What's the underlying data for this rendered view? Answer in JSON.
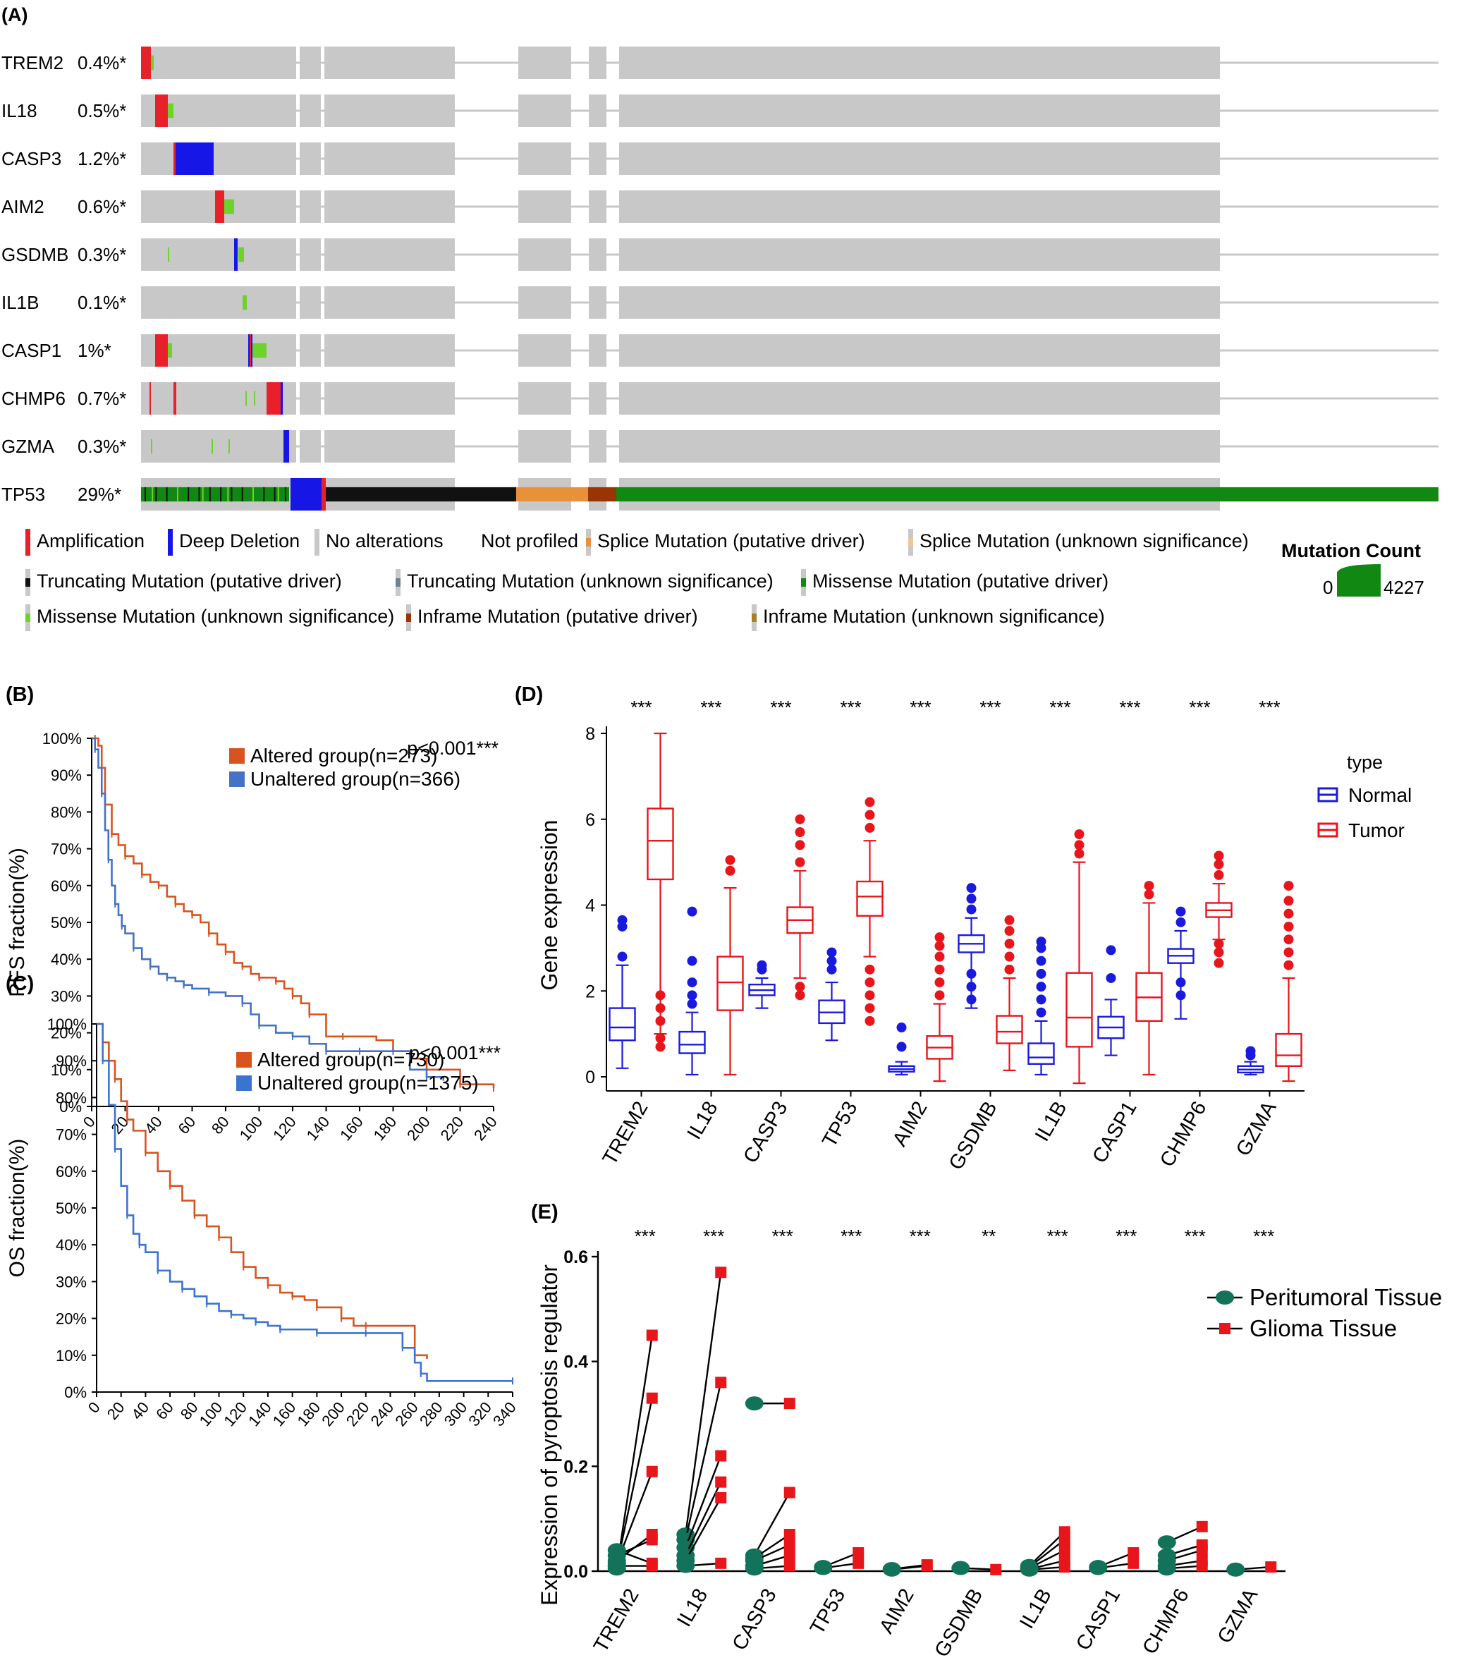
{
  "panels": {
    "A": "(A)",
    "B": "(B)",
    "C": "(C)",
    "D": "(D)",
    "E": "(E)"
  },
  "oncoprint": {
    "genes": [
      {
        "name": "TREM2",
        "pct": "0.4%*"
      },
      {
        "name": "IL18",
        "pct": "0.5%*"
      },
      {
        "name": "CASP3",
        "pct": "1.2%*"
      },
      {
        "name": "AIM2",
        "pct": "0.6%*"
      },
      {
        "name": "GSDMB",
        "pct": "0.3%*"
      },
      {
        "name": "IL1B",
        "pct": "0.1%*"
      },
      {
        "name": "CASP1",
        "pct": "1%*"
      },
      {
        "name": "CHMP6",
        "pct": "0.7%*"
      },
      {
        "name": "GZMA",
        "pct": "0.3%*"
      },
      {
        "name": "TP53",
        "pct": "29%*"
      }
    ],
    "legend": [
      {
        "label": "Amplification",
        "color": "#e8202a"
      },
      {
        "label": "Deep Deletion",
        "color": "#1616e6"
      },
      {
        "label": "No alterations",
        "color": "#c8c8c8"
      },
      {
        "label": "Not profiled",
        "color": "#ffffff"
      },
      {
        "label": "Splice Mutation (putative driver)",
        "color": "#e8913a"
      },
      {
        "label": "Splice Mutation (unknown significance)",
        "color": "#f0c49a"
      },
      {
        "label": "Truncating Mutation (putative driver)",
        "color": "#111111"
      },
      {
        "label": "Truncating Mutation (unknown significance)",
        "color": "#708090"
      },
      {
        "label": "Missense Mutation (putative driver)",
        "color": "#118811"
      },
      {
        "label": "Missense Mutation (unknown significance)",
        "color": "#6ed22c"
      },
      {
        "label": "Inframe Mutation (putative driver)",
        "color": "#993404"
      },
      {
        "label": "Inframe Mutation (unknown significance)",
        "color": "#a68028"
      }
    ],
    "mutation_count": {
      "title": "Mutation Count",
      "min": "0",
      "max": "4227"
    }
  },
  "chart_data": [
    {
      "type": "line",
      "panel": "B",
      "ylabel": "PFS fraction(%)",
      "pvalue": "p<0.001***",
      "xlim": [
        0,
        240
      ],
      "ylim": [
        0,
        100
      ],
      "xticks": [
        0,
        20,
        40,
        60,
        80,
        100,
        120,
        140,
        160,
        180,
        200,
        220,
        240
      ],
      "yticks": [
        "0%",
        "10%",
        "20%",
        "30%",
        "40%",
        "50%",
        "60%",
        "70%",
        "80%",
        "90%",
        "100%"
      ],
      "series": [
        {
          "name": "Altered group(n=273)",
          "color": "#d9531e",
          "x": [
            0,
            2,
            4,
            6,
            8,
            12,
            16,
            20,
            25,
            30,
            35,
            40,
            45,
            50,
            55,
            60,
            65,
            70,
            75,
            80,
            85,
            90,
            95,
            100,
            105,
            110,
            115,
            120,
            125,
            130,
            140,
            150,
            170,
            180,
            190,
            200,
            215,
            220,
            230,
            240
          ],
          "y": [
            100,
            100,
            98,
            92,
            82,
            74,
            71,
            68,
            66,
            63,
            61,
            60,
            57,
            55,
            53,
            52,
            50,
            47,
            44,
            42,
            39,
            38,
            36,
            35,
            35,
            34,
            32,
            30,
            28,
            25,
            19,
            19,
            18,
            15,
            13,
            10,
            10,
            6,
            6,
            5
          ]
        },
        {
          "name": "Unaltered group(n=366)",
          "color": "#4472c4",
          "x": [
            0,
            2,
            4,
            6,
            8,
            10,
            12,
            14,
            16,
            18,
            20,
            25,
            30,
            35,
            40,
            45,
            50,
            55,
            60,
            70,
            80,
            90,
            95,
            100,
            110,
            120,
            130,
            140,
            150,
            160,
            170,
            180,
            190,
            200,
            210
          ],
          "y": [
            100,
            97,
            92,
            85,
            75,
            67,
            60,
            55,
            52,
            49,
            47,
            43,
            40,
            38,
            36,
            35,
            34,
            33,
            32,
            31,
            30,
            28,
            25,
            22,
            20,
            19,
            17,
            15,
            15,
            15,
            15,
            15,
            10,
            8,
            7
          ]
        }
      ]
    },
    {
      "type": "line",
      "panel": "C",
      "ylabel": "OS fraction(%)",
      "pvalue": "p<0.001***",
      "xlim": [
        0,
        340
      ],
      "ylim": [
        0,
        100
      ],
      "xticks": [
        0,
        20,
        40,
        60,
        80,
        100,
        120,
        140,
        160,
        180,
        200,
        220,
        240,
        260,
        280,
        300,
        320,
        340
      ],
      "yticks": [
        "0%",
        "10%",
        "20%",
        "30%",
        "40%",
        "50%",
        "60%",
        "70%",
        "80%",
        "90%",
        "100%"
      ],
      "series": [
        {
          "name": "Altered group(n=730)",
          "color": "#d9531e",
          "x": [
            0,
            5,
            10,
            15,
            20,
            25,
            30,
            40,
            50,
            60,
            70,
            80,
            90,
            100,
            110,
            120,
            130,
            140,
            150,
            160,
            170,
            180,
            190,
            200,
            210,
            220,
            240,
            260,
            270
          ],
          "y": [
            100,
            95,
            90,
            85,
            79,
            74,
            71,
            65,
            60,
            56,
            52,
            48,
            45,
            42,
            38,
            34,
            31,
            29,
            27,
            26,
            25,
            23,
            23,
            20,
            18,
            18,
            18,
            10,
            9
          ]
        },
        {
          "name": "Unaltered group(n=1375)",
          "color": "#3b73d1",
          "x": [
            0,
            5,
            10,
            15,
            20,
            25,
            30,
            35,
            40,
            50,
            60,
            70,
            80,
            90,
            100,
            110,
            120,
            130,
            140,
            150,
            160,
            180,
            200,
            220,
            240,
            250,
            260,
            265,
            270,
            340
          ],
          "y": [
            100,
            90,
            78,
            66,
            56,
            48,
            43,
            40,
            38,
            33,
            30,
            28,
            26,
            24,
            22,
            21,
            20,
            19,
            18,
            17,
            17,
            16,
            16,
            16,
            16,
            12,
            8,
            5,
            3,
            3
          ]
        }
      ]
    },
    {
      "type": "box",
      "panel": "D",
      "ylabel": "Gene expression",
      "ylim": [
        0,
        8
      ],
      "yticks": [
        0,
        2,
        4,
        6,
        8
      ],
      "legend_title": "type",
      "categories": [
        "TREM2",
        "IL18",
        "CASP3",
        "TP53",
        "AIM2",
        "GSDMB",
        "IL1B",
        "CASP1",
        "CHMP6",
        "GZMA"
      ],
      "significance": [
        "***",
        "***",
        "***",
        "***",
        "***",
        "***",
        "***",
        "***",
        "***",
        "***"
      ],
      "series": [
        {
          "name": "Normal",
          "color": "#1a1adf",
          "boxes": [
            {
              "min": 0.2,
              "q1": 0.85,
              "median": 1.15,
              "q3": 1.6,
              "max": 2.6,
              "outliers": [
                2.8,
                3.5,
                3.65
              ]
            },
            {
              "min": 0.05,
              "q1": 0.55,
              "median": 0.75,
              "q3": 1.05,
              "max": 1.5,
              "outliers": [
                1.7,
                1.9,
                2.2,
                2.7,
                3.85
              ]
            },
            {
              "min": 1.6,
              "q1": 1.9,
              "median": 2.02,
              "q3": 2.15,
              "max": 2.3,
              "outliers": [
                2.5,
                2.6
              ]
            },
            {
              "min": 0.85,
              "q1": 1.25,
              "median": 1.5,
              "q3": 1.78,
              "max": 2.2,
              "outliers": [
                2.5,
                2.7,
                2.9
              ]
            },
            {
              "min": 0.05,
              "q1": 0.12,
              "median": 0.18,
              "q3": 0.25,
              "max": 0.35,
              "outliers": [
                0.7,
                1.15
              ]
            },
            {
              "min": 1.6,
              "q1": 2.9,
              "median": 3.1,
              "q3": 3.3,
              "max": 3.7,
              "outliers": [
                1.8,
                2.1,
                2.4,
                3.9,
                4.15,
                4.4
              ]
            },
            {
              "min": 0.05,
              "q1": 0.3,
              "median": 0.45,
              "q3": 0.78,
              "max": 1.3,
              "outliers": [
                1.5,
                1.8,
                2.1,
                2.4,
                2.7,
                3.0,
                3.15
              ]
            },
            {
              "min": 0.5,
              "q1": 0.9,
              "median": 1.15,
              "q3": 1.4,
              "max": 1.8,
              "outliers": [
                2.3,
                2.95
              ]
            },
            {
              "min": 1.35,
              "q1": 2.65,
              "median": 2.82,
              "q3": 2.98,
              "max": 3.4,
              "outliers": [
                1.9,
                2.2,
                3.6,
                3.85
              ]
            },
            {
              "min": 0.05,
              "q1": 0.1,
              "median": 0.17,
              "q3": 0.25,
              "max": 0.35,
              "outliers": [
                0.5,
                0.6
              ]
            }
          ]
        },
        {
          "name": "Tumor",
          "color": "#e8151b",
          "boxes": [
            {
              "min": 1.0,
              "q1": 4.6,
              "median": 5.5,
              "q3": 6.25,
              "max": 8.0,
              "outliers": [
                0.7,
                0.9,
                1.3,
                1.6,
                1.9
              ]
            },
            {
              "min": 0.05,
              "q1": 1.55,
              "median": 2.2,
              "q3": 2.8,
              "max": 4.4,
              "outliers": [
                4.8,
                5.05
              ]
            },
            {
              "min": 2.3,
              "q1": 3.35,
              "median": 3.65,
              "q3": 3.95,
              "max": 4.8,
              "outliers": [
                1.9,
                2.1,
                5.0,
                5.4,
                5.7,
                6.0
              ]
            },
            {
              "min": 2.8,
              "q1": 3.75,
              "median": 4.2,
              "q3": 4.55,
              "max": 5.5,
              "outliers": [
                1.3,
                1.6,
                1.9,
                2.2,
                2.5,
                5.8,
                6.1,
                6.4
              ]
            },
            {
              "min": -0.1,
              "q1": 0.42,
              "median": 0.68,
              "q3": 0.95,
              "max": 1.7,
              "outliers": [
                1.9,
                2.2,
                2.5,
                2.8,
                3.05,
                3.25
              ]
            },
            {
              "min": 0.15,
              "q1": 0.78,
              "median": 1.05,
              "q3": 1.42,
              "max": 2.3,
              "outliers": [
                2.5,
                2.8,
                3.1,
                3.4,
                3.65
              ]
            },
            {
              "min": -0.15,
              "q1": 0.7,
              "median": 1.38,
              "q3": 2.42,
              "max": 5.0,
              "outliers": [
                5.2,
                5.4,
                5.65
              ]
            },
            {
              "min": 0.05,
              "q1": 1.3,
              "median": 1.85,
              "q3": 2.42,
              "max": 4.05,
              "outliers": [
                4.25,
                4.45
              ]
            },
            {
              "min": 3.2,
              "q1": 3.72,
              "median": 3.88,
              "q3": 4.05,
              "max": 4.5,
              "outliers": [
                2.65,
                2.9,
                3.1,
                4.7,
                4.95,
                5.15
              ]
            },
            {
              "min": -0.1,
              "q1": 0.25,
              "median": 0.5,
              "q3": 1.0,
              "max": 2.3,
              "outliers": [
                2.6,
                2.9,
                3.2,
                3.5,
                3.8,
                4.1,
                4.45
              ]
            }
          ]
        }
      ]
    },
    {
      "type": "scatter",
      "panel": "E",
      "ylabel": "Expression of pyroptosis regulator",
      "ylim": [
        0,
        0.6
      ],
      "yticks": [
        "0.0",
        "0.2",
        "0.4",
        "0.6"
      ],
      "categories": [
        "TREM2",
        "IL18",
        "CASP3",
        "TP53",
        "AIM2",
        "GSDMB",
        "IL1B",
        "CASP1",
        "CHMP6",
        "GZMA"
      ],
      "significance": [
        "***",
        "***",
        "***",
        "***",
        "***",
        "**",
        "***",
        "***",
        "***",
        "***"
      ],
      "series": [
        {
          "name": "Peritumoral Tissue",
          "color": "#12735a",
          "marker": "circle"
        },
        {
          "name": "Glioma Tissue",
          "color": "#e8151b",
          "marker": "square"
        }
      ],
      "pairs": [
        [
          [
            0.005,
            0.45
          ],
          [
            0.01,
            0.33
          ],
          [
            0.015,
            0.19
          ],
          [
            0.02,
            0.07
          ],
          [
            0.03,
            0.06
          ],
          [
            0.04,
            0.015
          ],
          [
            0.01,
            0.01
          ]
        ],
        [
          [
            0.07,
            0.57
          ],
          [
            0.06,
            0.36
          ],
          [
            0.045,
            0.22
          ],
          [
            0.03,
            0.17
          ],
          [
            0.02,
            0.14
          ],
          [
            0.01,
            0.015
          ]
        ],
        [
          [
            0.32,
            0.32
          ],
          [
            0.03,
            0.15
          ],
          [
            0.025,
            0.07
          ],
          [
            0.02,
            0.05
          ],
          [
            0.01,
            0.03
          ],
          [
            0.005,
            0.01
          ]
        ],
        [
          [
            0.008,
            0.035
          ],
          [
            0.006,
            0.015
          ]
        ],
        [
          [
            0.004,
            0.012
          ],
          [
            0.003,
            0.01
          ]
        ],
        [
          [
            0.006,
            0.003
          ]
        ],
        [
          [
            0.01,
            0.075
          ],
          [
            0.008,
            0.06
          ],
          [
            0.006,
            0.04
          ],
          [
            0.004,
            0.02
          ],
          [
            0.003,
            0.008
          ]
        ],
        [
          [
            0.008,
            0.035
          ],
          [
            0.006,
            0.015
          ]
        ],
        [
          [
            0.055,
            0.085
          ],
          [
            0.03,
            0.05
          ],
          [
            0.02,
            0.04
          ],
          [
            0.01,
            0.02
          ],
          [
            0.005,
            0.01
          ]
        ],
        [
          [
            0.003,
            0.008
          ]
        ]
      ]
    }
  ]
}
